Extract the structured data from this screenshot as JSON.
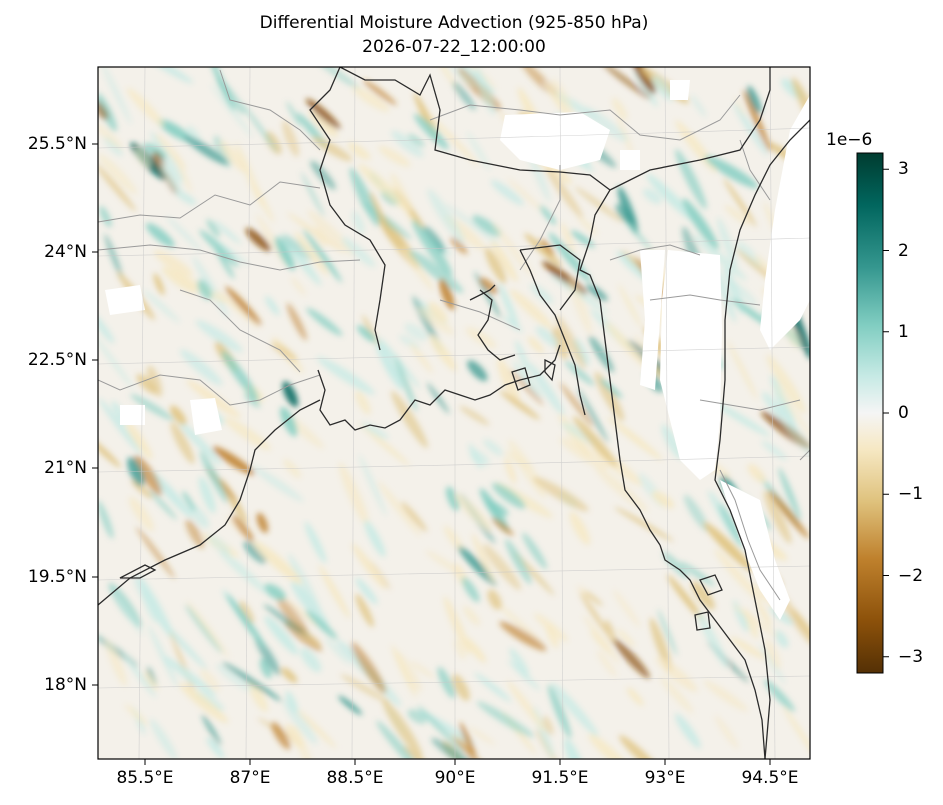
{
  "title": {
    "line1": "Differential Moisture Advection (925-850 hPa)",
    "line2": "2026-07-22_12:00:00"
  },
  "map": {
    "projection": "lambert-conformal",
    "lat_ticks": [
      "25.5°N",
      "24°N",
      "22.5°N",
      "21°N",
      "19.5°N",
      "18°N"
    ],
    "lon_ticks": [
      "85.5°E",
      "87°E",
      "88.5°E",
      "90°E",
      "91.5°E",
      "93°E",
      "94.5°E"
    ],
    "lat_range": [
      17.0,
      26.5
    ],
    "lon_range": [
      84.9,
      94.9
    ],
    "coastline_color": "#222222",
    "border_color": "#9a9a9a",
    "missing_value_color": "#ffffff",
    "field_note": "BrBG diverging field, mostly near-zero with streaky positive (teal) and negative (brown) patches"
  },
  "colorbar": {
    "cmap": "BrBG",
    "exponent_label": "1e−6",
    "range": [
      -3.2,
      3.2
    ],
    "tick_labels": [
      "3",
      "2",
      "1",
      "0",
      "−1",
      "−2",
      "−3"
    ],
    "tick_values": [
      3,
      2,
      1,
      0,
      -1,
      -2,
      -3
    ],
    "colors_top_to_bottom": [
      "#003c30",
      "#01665e",
      "#35978f",
      "#80cdc1",
      "#c7eae5",
      "#f5f5f5",
      "#f6e8c3",
      "#dfc27d",
      "#bf812d",
      "#8c510a",
      "#543005"
    ]
  }
}
